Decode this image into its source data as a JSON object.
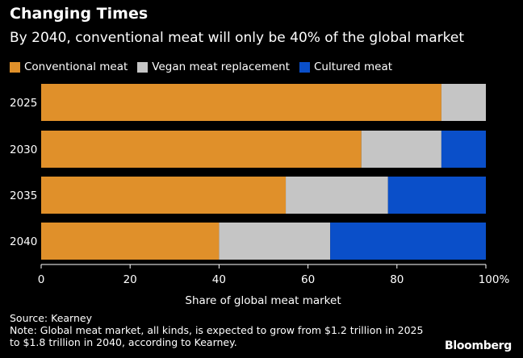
{
  "chart_data": {
    "type": "bar",
    "orientation": "horizontal",
    "stacked": true,
    "title": "Changing Times",
    "subtitle": "By 2040, conventional meat will only be 40% of the global market",
    "categories": [
      "2025",
      "2030",
      "2035",
      "2040"
    ],
    "series": [
      {
        "name": "Conventional meat",
        "color": "#e0902a",
        "values": [
          90,
          72,
          55,
          40
        ]
      },
      {
        "name": "Vegan meat replacement",
        "color": "#c5c5c5",
        "values": [
          10,
          18,
          23,
          25
        ]
      },
      {
        "name": "Cultured meat",
        "color": "#0a4fc9",
        "values": [
          0,
          10,
          22,
          35
        ]
      }
    ],
    "xlabel": "Share of global meat market",
    "ylabel": "",
    "xlim": [
      0,
      100
    ],
    "xticks": [
      "0",
      "20",
      "40",
      "60",
      "80",
      "100%"
    ],
    "xtick_values": [
      0,
      20,
      40,
      60,
      80,
      100
    ],
    "grid": false,
    "legend_position": "top-left"
  },
  "footer": {
    "source": "Source: Kearney",
    "note_line1": "Note: Global meat market, all kinds, is expected to grow from $1.2 trillion in 2025",
    "note_line2": "to $1.8 trillion in 2040, according to Kearney."
  },
  "brand": "Bloomberg"
}
